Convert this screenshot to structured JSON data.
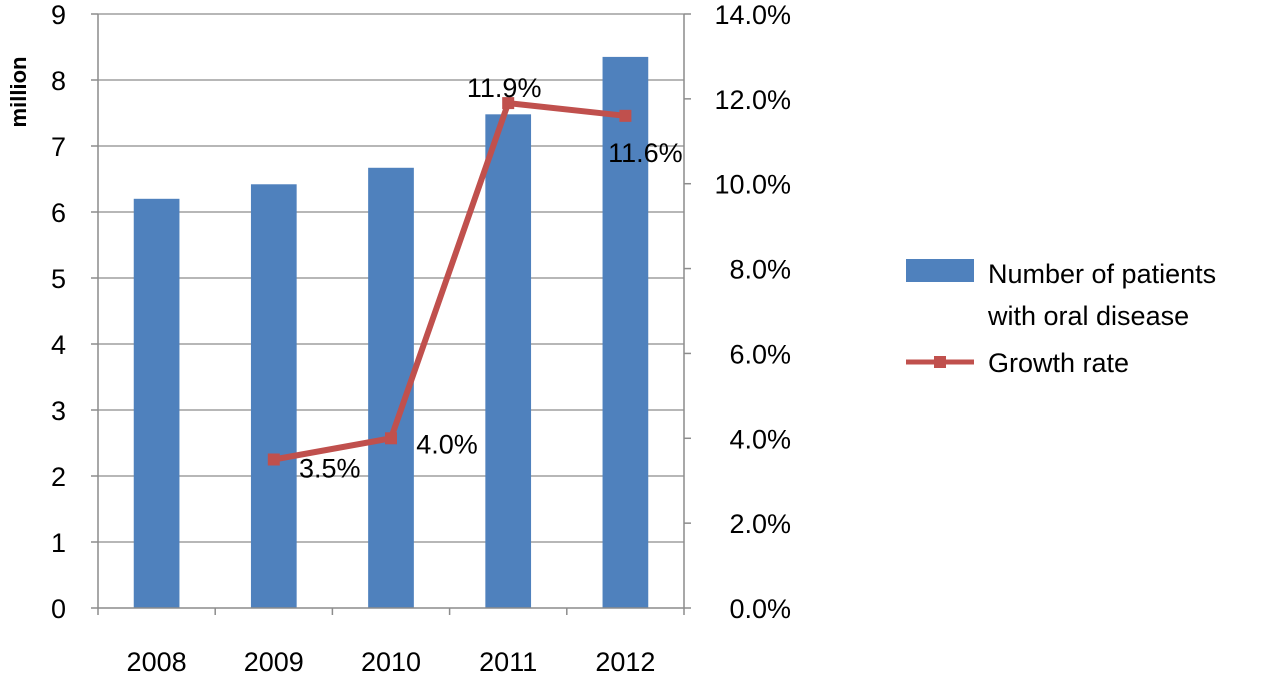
{
  "chart_data": {
    "type": "bar",
    "categories": [
      "2008",
      "2009",
      "2010",
      "2011",
      "2012"
    ],
    "ylabel": "million",
    "ylim": [
      0,
      9
    ],
    "y_ticks": [
      "0",
      "1",
      "2",
      "3",
      "4",
      "5",
      "6",
      "7",
      "8",
      "9"
    ],
    "y2lim": [
      0,
      14
    ],
    "y2_ticks": [
      "0.0%",
      "2.0%",
      "4.0%",
      "6.0%",
      "8.0%",
      "10.0%",
      "12.0%",
      "14.0%"
    ],
    "grid": true,
    "legend_position": "right",
    "series": [
      {
        "name": "Number of patients with oral disease",
        "legend_lines": [
          "Number of patients",
          "with oral disease"
        ],
        "type": "bar",
        "axis": "left",
        "color": "#4f81bd",
        "values": [
          6.2,
          6.42,
          6.67,
          7.48,
          8.35
        ]
      },
      {
        "name": "Growth rate",
        "type": "line",
        "axis": "right",
        "color": "#c0504d",
        "values": [
          null,
          3.5,
          4.0,
          11.9,
          11.6
        ],
        "labels": [
          null,
          "3.5%",
          "4.0%",
          "11.9%",
          "11.6%"
        ]
      }
    ]
  }
}
